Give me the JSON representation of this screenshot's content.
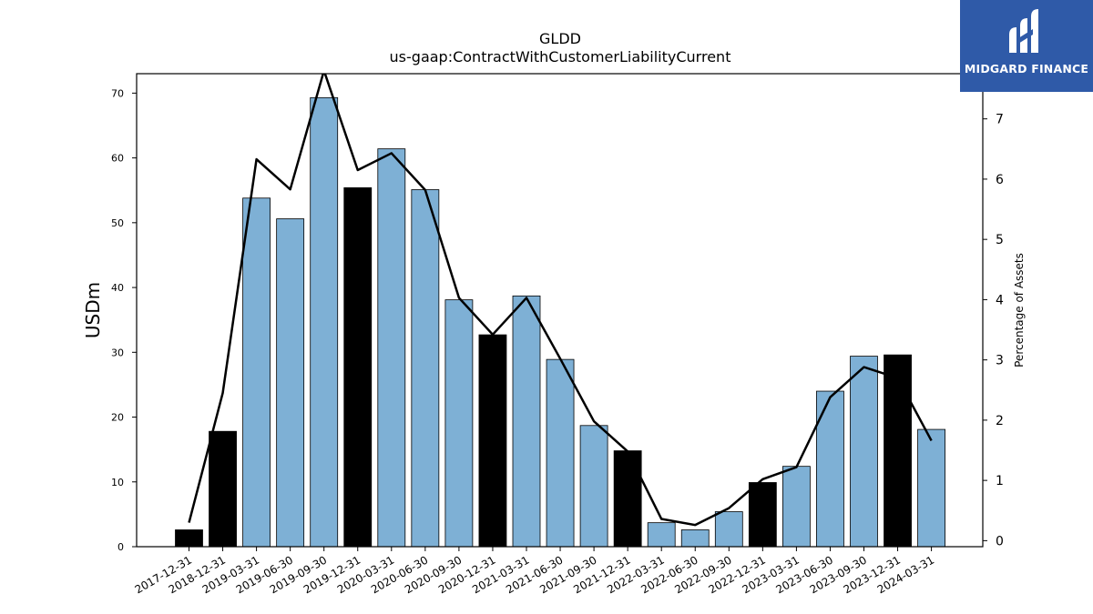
{
  "header": {
    "title": "GLDD",
    "subtitle": "us-gaap:ContractWithCustomerLiabilityCurrent"
  },
  "logo": {
    "text": "MIDGARD FINANCE",
    "color": "#2f5aa8"
  },
  "colors": {
    "quarter_bar": "#7eb0d5",
    "year_end_bar": "#000000",
    "line": "#000000"
  },
  "chart_data": {
    "type": "bar",
    "title": "GLDD",
    "subtitle": "us-gaap:ContractWithCustomerLiabilityCurrent",
    "ylabel": "USDm",
    "y2label": "Percentage of Assets",
    "ylim": [
      0,
      73
    ],
    "y2lim": [
      -0.1,
      7.75
    ],
    "yticks": [
      0,
      10,
      20,
      30,
      40,
      50,
      60,
      70
    ],
    "y2ticks": [
      0,
      1,
      2,
      3,
      4,
      5,
      6,
      7
    ],
    "categories": [
      "2017-12-31",
      "2018-12-31",
      "2019-03-31",
      "2019-06-30",
      "2019-09-30",
      "2019-12-31",
      "2020-03-31",
      "2020-06-30",
      "2020-09-30",
      "2020-12-31",
      "2021-03-31",
      "2021-06-30",
      "2021-09-30",
      "2021-12-31",
      "2022-03-31",
      "2022-06-30",
      "2022-09-30",
      "2022-12-31",
      "2023-03-31",
      "2023-06-30",
      "2023-09-30",
      "2023-12-31",
      "2024-03-31"
    ],
    "series": [
      {
        "type": "bar",
        "axis": "left",
        "values": [
          2.6,
          17.8,
          53.8,
          50.6,
          69.3,
          55.4,
          61.4,
          55.1,
          38.1,
          32.7,
          38.7,
          28.9,
          18.7,
          14.8,
          3.7,
          2.6,
          5.4,
          9.9,
          12.4,
          24.0,
          29.4,
          29.6,
          18.1
        ],
        "year_end": [
          true,
          true,
          false,
          false,
          false,
          true,
          false,
          false,
          false,
          true,
          false,
          false,
          false,
          true,
          false,
          false,
          false,
          true,
          false,
          false,
          false,
          true,
          false
        ]
      },
      {
        "type": "line",
        "axis": "right",
        "values": [
          0.3,
          2.45,
          6.33,
          5.83,
          7.8,
          6.15,
          6.43,
          5.82,
          4.03,
          3.42,
          4.03,
          3.02,
          1.98,
          1.48,
          0.36,
          0.26,
          0.54,
          1.02,
          1.22,
          2.38,
          2.88,
          2.7,
          1.66
        ]
      }
    ]
  }
}
